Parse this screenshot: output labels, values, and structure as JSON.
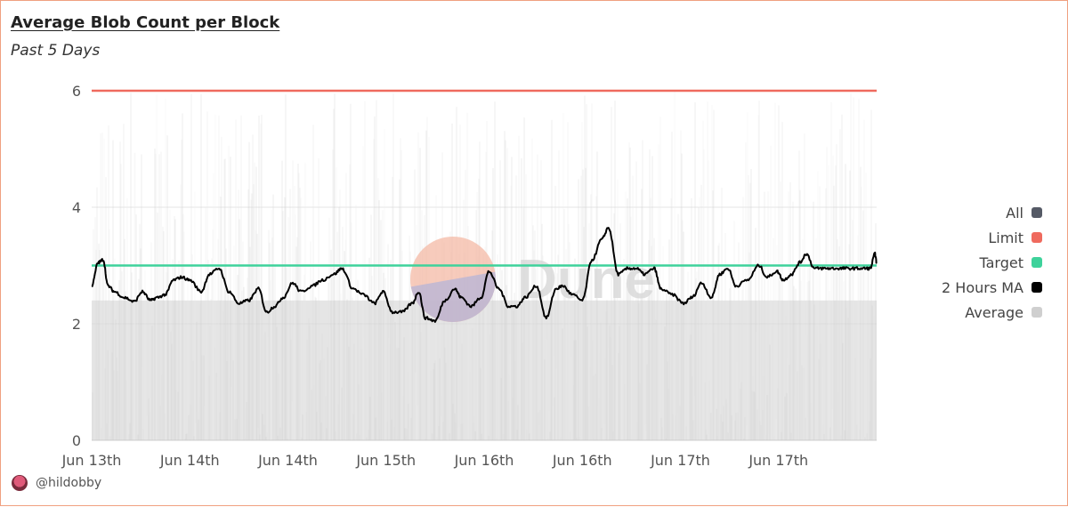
{
  "header": {
    "title": "Average Blob Count per Block",
    "subtitle": "Past 5 Days"
  },
  "watermark": "Dune",
  "footer": {
    "author": "@hildobby"
  },
  "colors": {
    "all": "#555a66",
    "limit": "#ef6a5e",
    "target": "#3ed29b",
    "ma": "#000000",
    "average": "#cfcfcf"
  },
  "chart_data": {
    "type": "line",
    "title": "Average Blob Count per Block",
    "subtitle": "Past 5 Days",
    "ylim": [
      0,
      6
    ],
    "yticks": [
      0,
      2,
      4,
      6
    ],
    "grid": true,
    "legend_position": "right",
    "x_tick_labels": [
      "Jun 13th",
      "Jun 14th",
      "Jun 14th",
      "Jun 15th",
      "Jun 16th",
      "Jun 16th",
      "Jun 17th",
      "Jun 17th"
    ],
    "x_tick_days": [
      0,
      0.6,
      1.2,
      1.8,
      2.4,
      3.0,
      3.6,
      4.2
    ],
    "x_range_days": [
      0,
      4.8
    ],
    "legend": [
      "All",
      "Limit",
      "Target",
      "2 Hours MA",
      "Average"
    ],
    "series": [
      {
        "name": "Limit",
        "type": "constant",
        "value": 6
      },
      {
        "name": "Target",
        "type": "constant",
        "value": 3
      },
      {
        "name": "2 Hours MA",
        "x_days": [
          0,
          0.04,
          0.07,
          0.1,
          0.14,
          0.2,
          0.26,
          0.31,
          0.36,
          0.4,
          0.45,
          0.5,
          0.55,
          0.6,
          0.67,
          0.72,
          0.78,
          0.84,
          0.9,
          0.96,
          1.02,
          1.07,
          1.12,
          1.17,
          1.23,
          1.28,
          1.35,
          1.41,
          1.48,
          1.53,
          1.6,
          1.66,
          1.73,
          1.78,
          1.84,
          1.9,
          1.96,
          2.0,
          2.04,
          2.1,
          2.16,
          2.22,
          2.26,
          2.32,
          2.38,
          2.43,
          2.49,
          2.55,
          2.6,
          2.65,
          2.72,
          2.78,
          2.84,
          2.88,
          2.94,
          3.0,
          3.06,
          3.12,
          3.16,
          3.22,
          3.28,
          3.33,
          3.38,
          3.44,
          3.48,
          3.55,
          3.62,
          3.67,
          3.73,
          3.79,
          3.84,
          3.89,
          3.94,
          4.01,
          4.08,
          4.13,
          4.19,
          4.23,
          4.28,
          4.33,
          4.37,
          4.42,
          4.47,
          4.52,
          4.58,
          4.62,
          4.68,
          4.73,
          4.76,
          4.79,
          4.8
        ],
        "values": [
          2.65,
          3.05,
          3.1,
          2.65,
          2.55,
          2.45,
          2.38,
          2.55,
          2.4,
          2.45,
          2.5,
          2.75,
          2.8,
          2.75,
          2.55,
          2.85,
          2.95,
          2.55,
          2.35,
          2.4,
          2.6,
          2.2,
          2.3,
          2.45,
          2.7,
          2.55,
          2.65,
          2.75,
          2.85,
          2.95,
          2.6,
          2.5,
          2.35,
          2.55,
          2.2,
          2.2,
          2.35,
          2.55,
          2.1,
          2.05,
          2.4,
          2.6,
          2.45,
          2.3,
          2.45,
          2.9,
          2.6,
          2.3,
          2.3,
          2.45,
          2.65,
          2.1,
          2.6,
          2.65,
          2.5,
          2.4,
          3.1,
          3.45,
          3.65,
          2.85,
          2.95,
          2.95,
          2.85,
          2.95,
          2.6,
          2.5,
          2.35,
          2.45,
          2.7,
          2.45,
          2.85,
          2.95,
          2.65,
          2.75,
          3.0,
          2.8,
          2.9,
          2.75,
          2.85,
          3.05,
          3.2,
          2.95,
          2.95,
          2.95,
          2.95,
          2.95,
          2.95,
          2.95,
          2.95,
          3.2,
          3.05
        ]
      },
      {
        "name": "Average",
        "type": "area",
        "approx_base": 2.4,
        "noise_range": [
          0,
          6
        ]
      }
    ]
  }
}
